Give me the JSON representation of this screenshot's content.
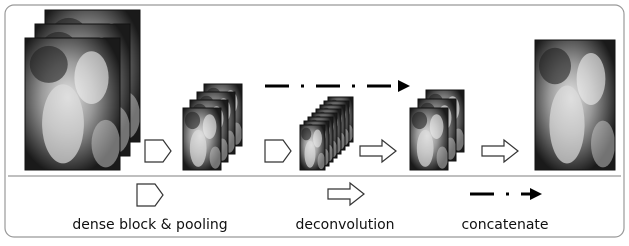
{
  "legend": [
    "dense block & pooling",
    "deconvolution",
    "concatenate"
  ]
}
